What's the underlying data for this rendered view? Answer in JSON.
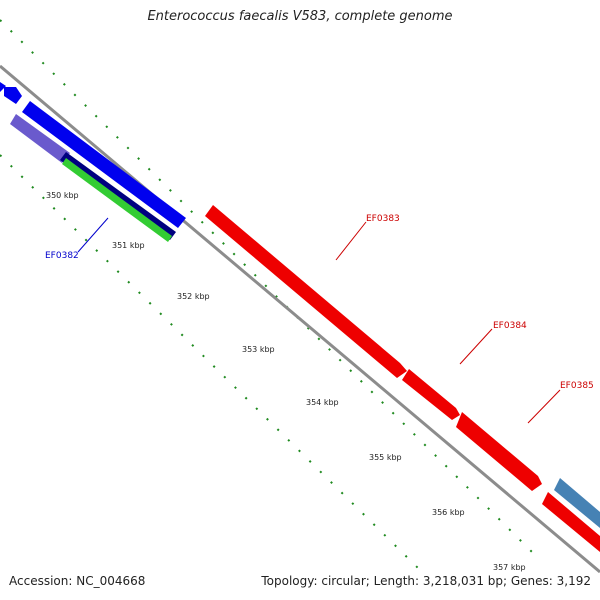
{
  "title": "Enterococcus faecalis V583, complete genome",
  "footer": {
    "accession": "Accession: NC_004668",
    "topology": "Topology: circular; Length: 3,218,031 bp; Genes: 3,192"
  },
  "scale_labels": [
    "350 kbp",
    "351 kbp",
    "352 kbp",
    "353 kbp",
    "354 kbp",
    "355 kbp",
    "356 kbp",
    "357 kbp"
  ],
  "gene_labels": [
    {
      "text": "EF0382",
      "color": "#0000cc"
    },
    {
      "text": "EF0383",
      "color": "#cc0000"
    },
    {
      "text": "EF0384",
      "color": "#cc0000"
    },
    {
      "text": "EF0385",
      "color": "#cc0000"
    }
  ],
  "colors": {
    "backbone": "#8c8c8c",
    "ticks": "#1f8a1f",
    "blue_feature": "#0000ee",
    "navy_feature": "#000080",
    "green_feature": "#33cc33",
    "lavender_feature": "#6a5acd",
    "red_feature": "#ee0000",
    "steelblue_feature": "#4682b4"
  }
}
